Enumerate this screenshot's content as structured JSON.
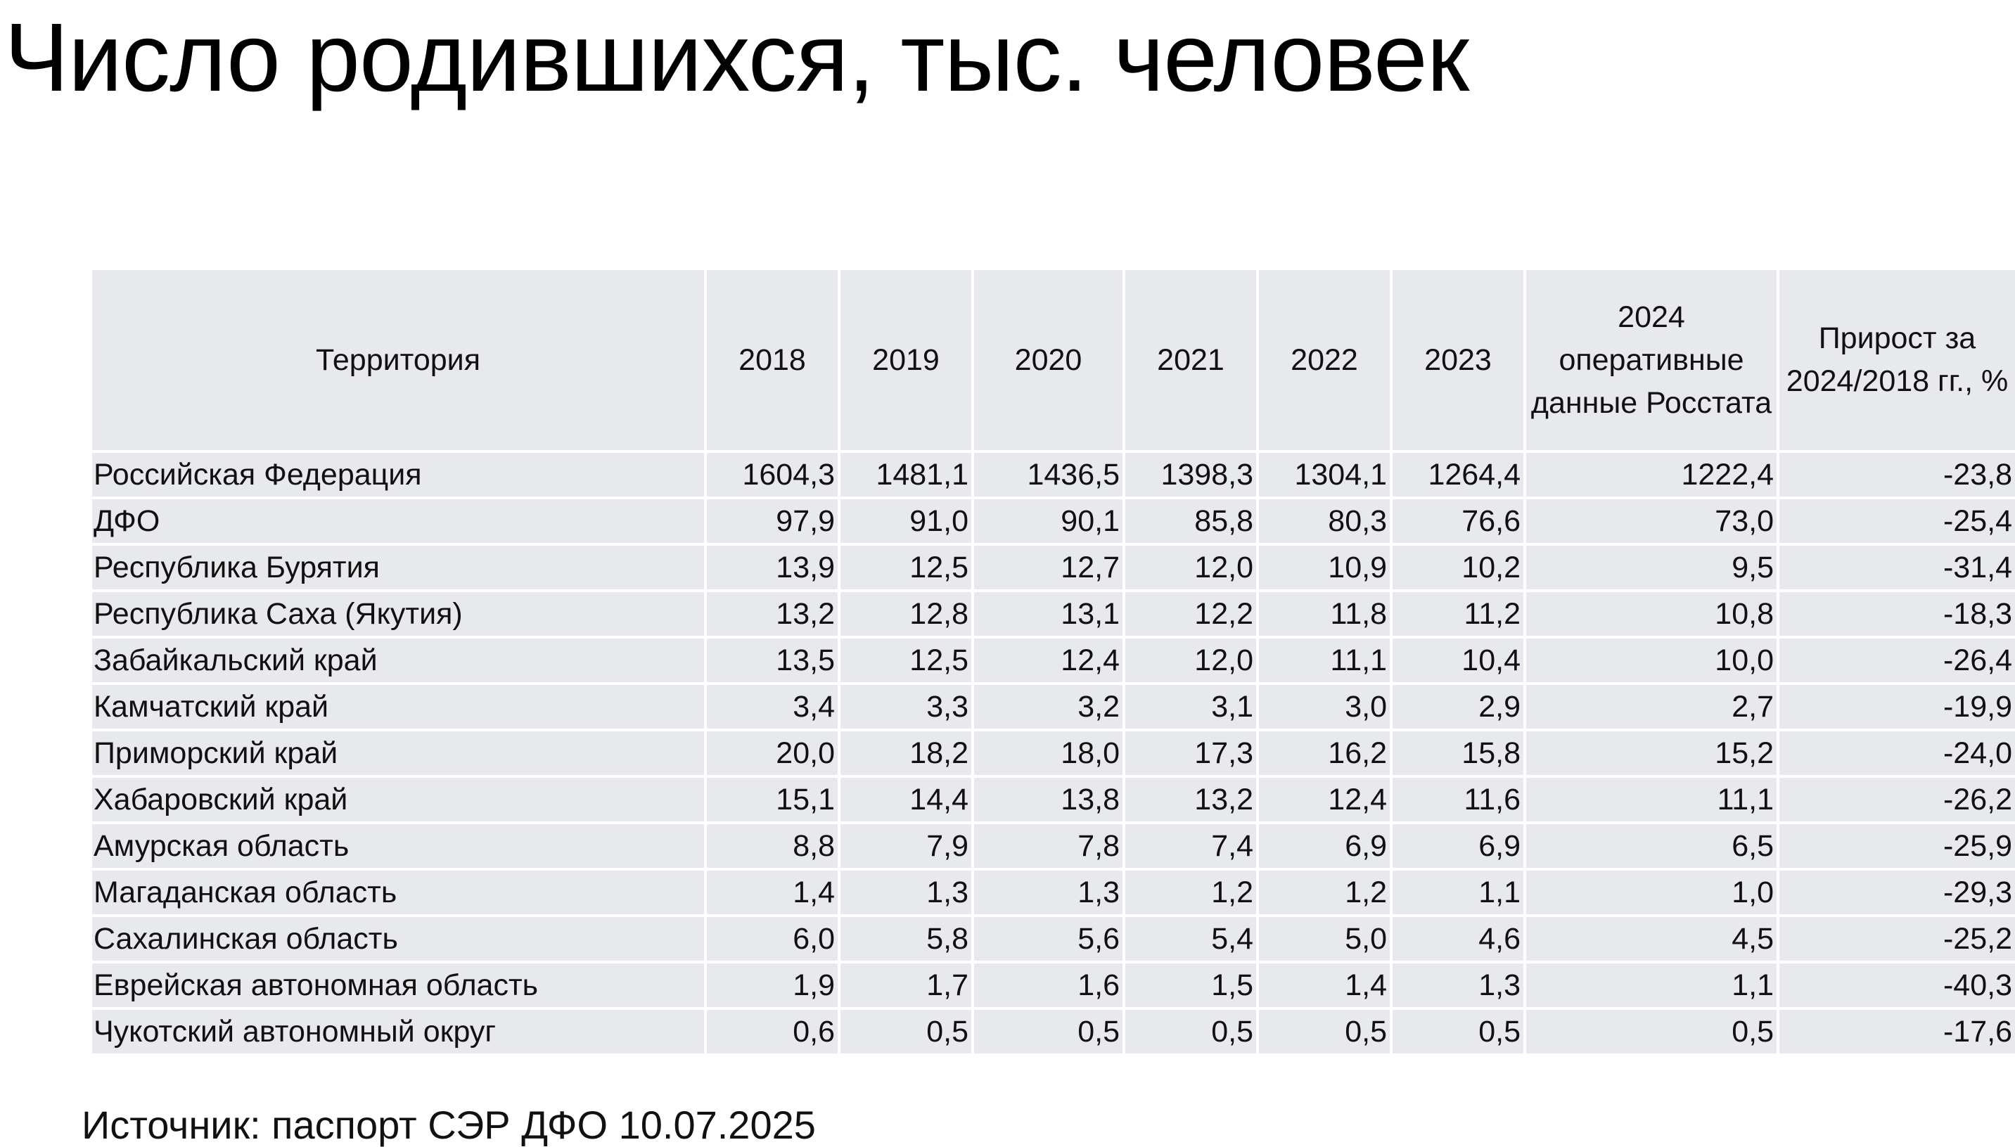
{
  "title": "Число родившихся, тыс. человек",
  "table": {
    "headers": [
      "Территория",
      "2018",
      "2019",
      "2020",
      "2021",
      "2022",
      "2023",
      "2024 оперативные данные Росстата",
      "Прирост за 2024/2018 гг., %"
    ],
    "rows": [
      {
        "name": "Российская Федерация",
        "values": [
          "1604,3",
          "1481,1",
          "1436,5",
          "1398,3",
          "1304,1",
          "1264,4",
          "1222,4",
          "-23,8"
        ]
      },
      {
        "name": "ДФО",
        "values": [
          "97,9",
          "91,0",
          "90,1",
          "85,8",
          "80,3",
          "76,6",
          "73,0",
          "-25,4"
        ]
      },
      {
        "name": "Республика Бурятия",
        "values": [
          "13,9",
          "12,5",
          "12,7",
          "12,0",
          "10,9",
          "10,2",
          "9,5",
          "-31,4"
        ]
      },
      {
        "name": "Республика Саха (Якутия)",
        "values": [
          "13,2",
          "12,8",
          "13,1",
          "12,2",
          "11,8",
          "11,2",
          "10,8",
          "-18,3"
        ]
      },
      {
        "name": "Забайкальский край",
        "values": [
          "13,5",
          "12,5",
          "12,4",
          "12,0",
          "11,1",
          "10,4",
          "10,0",
          "-26,4"
        ]
      },
      {
        "name": "Камчатский край",
        "values": [
          "3,4",
          "3,3",
          "3,2",
          "3,1",
          "3,0",
          "2,9",
          "2,7",
          "-19,9"
        ]
      },
      {
        "name": "Приморский край",
        "values": [
          "20,0",
          "18,2",
          "18,0",
          "17,3",
          "16,2",
          "15,8",
          "15,2",
          "-24,0"
        ]
      },
      {
        "name": "Хабаровский край",
        "values": [
          "15,1",
          "14,4",
          "13,8",
          "13,2",
          "12,4",
          "11,6",
          "11,1",
          "-26,2"
        ]
      },
      {
        "name": "Амурская область",
        "values": [
          "8,8",
          "7,9",
          "7,8",
          "7,4",
          "6,9",
          "6,9",
          "6,5",
          "-25,9"
        ]
      },
      {
        "name": "Магаданская область",
        "values": [
          "1,4",
          "1,3",
          "1,3",
          "1,2",
          "1,2",
          "1,1",
          "1,0",
          "-29,3"
        ]
      },
      {
        "name": "Сахалинская область",
        "values": [
          "6,0",
          "5,8",
          "5,6",
          "5,4",
          "5,0",
          "4,6",
          "4,5",
          "-25,2"
        ]
      },
      {
        "name": "Еврейская автономная область",
        "values": [
          "1,9",
          "1,7",
          "1,6",
          "1,5",
          "1,4",
          "1,3",
          "1,1",
          "-40,3"
        ]
      },
      {
        "name": "Чукотский автономный округ",
        "values": [
          "0,6",
          "0,5",
          "0,5",
          "0,5",
          "0,5",
          "0,5",
          "0,5",
          "-17,6"
        ]
      }
    ]
  },
  "source": "Источник: паспорт СЭР ДФО  10.07.2025",
  "colors": {
    "cell_background": "#e7e9ed",
    "grid_lines": "#ffffff",
    "text": "#111111"
  }
}
